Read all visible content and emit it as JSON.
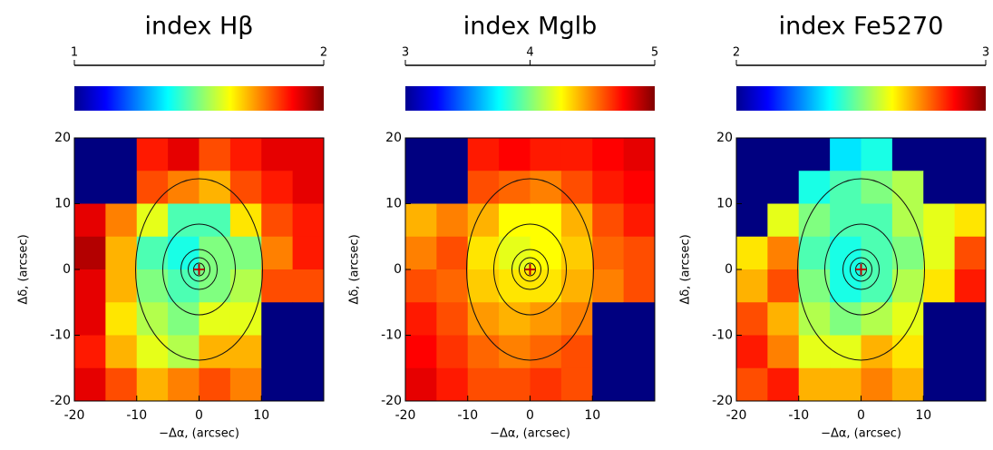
{
  "chart_data": [
    {
      "type": "heatmap",
      "title": "index Hβ",
      "clim": [
        1,
        2
      ],
      "cbar_ticks": [
        1,
        2
      ],
      "xlim": [
        -20,
        20
      ],
      "ylim": [
        -20,
        20
      ],
      "xticks": [
        -20,
        -10,
        0,
        10
      ],
      "yticks": [
        -20,
        -10,
        0,
        10,
        20
      ],
      "xlabel": "−Δα, (arcsec)",
      "ylabel": "Δδ, (arcsec)",
      "z": [
        [
          1.0,
          1.0,
          1.85,
          1.9,
          1.8,
          1.85,
          1.9,
          1.9
        ],
        [
          1.0,
          1.0,
          1.8,
          1.75,
          1.7,
          1.8,
          1.85,
          1.9
        ],
        [
          1.9,
          1.75,
          1.6,
          1.45,
          1.45,
          1.65,
          1.8,
          1.85
        ],
        [
          1.95,
          1.7,
          1.45,
          1.4,
          1.5,
          1.5,
          1.75,
          1.85
        ],
        [
          1.9,
          1.7,
          1.5,
          1.45,
          1.5,
          1.55,
          1.8,
          1.8
        ],
        [
          1.9,
          1.65,
          1.55,
          1.5,
          1.6,
          1.6,
          1.0,
          1.0
        ],
        [
          1.85,
          1.7,
          1.6,
          1.55,
          1.7,
          1.7,
          1.0,
          1.0
        ],
        [
          1.9,
          1.8,
          1.7,
          1.75,
          1.8,
          1.75,
          1.0,
          1.0
        ]
      ]
    },
    {
      "type": "heatmap",
      "title": "index Mglb",
      "clim": [
        3,
        5
      ],
      "cbar_ticks": [
        3,
        4,
        5
      ],
      "xlim": [
        -20,
        20
      ],
      "ylim": [
        -20,
        20
      ],
      "xticks": [
        -20,
        -10,
        0,
        10
      ],
      "yticks": [
        -20,
        -10,
        0,
        10,
        20
      ],
      "xlabel": "−Δα, (arcsec)",
      "ylabel": "Δδ, (arcsec)",
      "z": [
        [
          3.0,
          3.0,
          4.7,
          4.75,
          4.7,
          4.7,
          4.75,
          4.8
        ],
        [
          3.0,
          3.0,
          4.6,
          4.55,
          4.5,
          4.6,
          4.7,
          4.75
        ],
        [
          4.4,
          4.5,
          4.4,
          4.25,
          4.25,
          4.4,
          4.6,
          4.7
        ],
        [
          4.5,
          4.6,
          4.3,
          4.2,
          4.25,
          4.35,
          4.55,
          4.6
        ],
        [
          4.6,
          4.55,
          4.35,
          4.3,
          4.3,
          4.4,
          4.5,
          4.6
        ],
        [
          4.7,
          4.6,
          4.45,
          4.4,
          4.45,
          4.5,
          3.0,
          3.0
        ],
        [
          4.75,
          4.65,
          4.55,
          4.5,
          4.55,
          4.6,
          3.0,
          3.0
        ],
        [
          4.8,
          4.7,
          4.6,
          4.6,
          4.65,
          4.6,
          3.0,
          3.0
        ]
      ]
    },
    {
      "type": "heatmap",
      "title": "index Fe5270",
      "clim": [
        2,
        3
      ],
      "cbar_ticks": [
        2,
        3
      ],
      "xlim": [
        -20,
        20
      ],
      "ylim": [
        -20,
        20
      ],
      "xticks": [
        -20,
        -10,
        0,
        10
      ],
      "yticks": [
        -20,
        -10,
        0,
        10,
        20
      ],
      "xlabel": "−Δα, (arcsec)",
      "ylabel": "Δδ, (arcsec)",
      "z": [
        [
          2.0,
          2.0,
          2.0,
          2.35,
          2.4,
          2.0,
          2.0,
          2.0
        ],
        [
          2.0,
          2.0,
          2.4,
          2.45,
          2.5,
          2.55,
          2.0,
          2.0
        ],
        [
          2.0,
          2.6,
          2.5,
          2.45,
          2.45,
          2.55,
          2.6,
          2.65
        ],
        [
          2.65,
          2.75,
          2.45,
          2.4,
          2.45,
          2.5,
          2.6,
          2.8
        ],
        [
          2.7,
          2.8,
          2.5,
          2.4,
          2.45,
          2.55,
          2.65,
          2.85
        ],
        [
          2.8,
          2.7,
          2.55,
          2.5,
          2.55,
          2.6,
          2.0,
          2.0
        ],
        [
          2.85,
          2.75,
          2.6,
          2.6,
          2.7,
          2.65,
          2.0,
          2.0
        ],
        [
          2.8,
          2.85,
          2.7,
          2.7,
          2.75,
          2.7,
          2.0,
          2.0
        ]
      ]
    }
  ]
}
